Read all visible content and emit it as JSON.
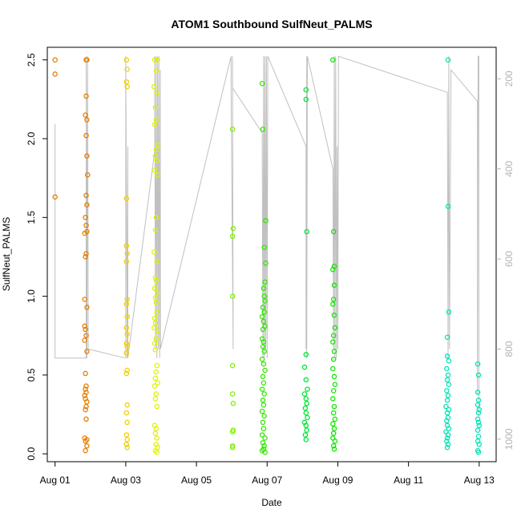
{
  "chart_data": {
    "type": "scatter",
    "title": "ATOM1 Southbound SulfNeut_PALMS",
    "xlabel": "Date",
    "ylabel": "SulfNeut_PALMS",
    "x_ticks": [
      "Aug 01",
      "Aug 03",
      "Aug 05",
      "Aug 07",
      "Aug 09",
      "Aug 11",
      "Aug 13"
    ],
    "x_tick_days": [
      1,
      3,
      5,
      7,
      9,
      11,
      13
    ],
    "xlim_days": [
      0.78,
      13.48
    ],
    "ylim": [
      -0.05,
      2.58
    ],
    "y_ticks": [
      "0.0",
      "0.5",
      "1.0",
      "1.5",
      "2.0",
      "2.5"
    ],
    "y_tick_values": [
      0,
      0.5,
      1,
      1.5,
      2,
      2.5
    ],
    "y2_label": "",
    "y2_ticks": [
      "200",
      "400",
      "600",
      "800",
      "1000"
    ],
    "y2_tick_values": [
      200,
      400,
      600,
      800,
      1000
    ],
    "y2lim": [
      1050,
      130
    ],
    "grid": false,
    "series": [
      {
        "color": "#e67e00",
        "points": [
          [
            1.0,
            2.5
          ],
          [
            1.0,
            2.41
          ],
          [
            1.0,
            1.63
          ],
          [
            1.88,
            2.5
          ],
          [
            1.9,
            2.5
          ],
          [
            1.88,
            2.27
          ],
          [
            1.86,
            2.15
          ],
          [
            1.9,
            2.12
          ],
          [
            1.88,
            2.02
          ],
          [
            1.9,
            1.89
          ],
          [
            1.92,
            1.77
          ],
          [
            1.88,
            1.64
          ],
          [
            1.9,
            1.58
          ],
          [
            1.86,
            1.5
          ],
          [
            1.88,
            1.45
          ],
          [
            1.84,
            1.4
          ],
          [
            1.9,
            1.41
          ],
          [
            1.88,
            1.27
          ],
          [
            1.86,
            1.25
          ],
          [
            1.84,
            0.98
          ],
          [
            1.9,
            0.93
          ],
          [
            1.84,
            0.81
          ],
          [
            1.86,
            0.79
          ],
          [
            1.88,
            0.75
          ],
          [
            1.84,
            0.72
          ],
          [
            1.9,
            0.65
          ],
          [
            1.86,
            0.51
          ],
          [
            1.88,
            0.43
          ],
          [
            1.86,
            0.41
          ],
          [
            1.88,
            0.39
          ],
          [
            1.84,
            0.37
          ],
          [
            1.86,
            0.35
          ],
          [
            1.9,
            0.33
          ],
          [
            1.88,
            0.3
          ],
          [
            1.86,
            0.28
          ],
          [
            1.88,
            0.22
          ],
          [
            1.84,
            0.1
          ],
          [
            1.9,
            0.09
          ],
          [
            1.86,
            0.08
          ],
          [
            1.9,
            0.05
          ],
          [
            1.86,
            0.02
          ]
        ]
      },
      {
        "color": "#f2cf00",
        "points": [
          [
            3.02,
            2.5
          ],
          [
            3.04,
            2.44
          ],
          [
            3.02,
            2.36
          ],
          [
            3.04,
            2.33
          ],
          [
            3.02,
            1.62
          ],
          [
            3.02,
            1.32
          ],
          [
            3.04,
            1.27
          ],
          [
            3.02,
            1.22
          ],
          [
            3.04,
            0.98
          ],
          [
            3.02,
            0.95
          ],
          [
            3.04,
            0.87
          ],
          [
            3.02,
            0.8
          ],
          [
            3.04,
            0.76
          ],
          [
            3.02,
            0.7
          ],
          [
            3.04,
            0.68
          ],
          [
            3.02,
            0.64
          ],
          [
            3.04,
            0.53
          ],
          [
            3.02,
            0.51
          ],
          [
            3.04,
            0.31
          ],
          [
            3.02,
            0.26
          ],
          [
            3.04,
            0.2
          ],
          [
            3.02,
            0.12
          ],
          [
            3.04,
            0.09
          ],
          [
            3.02,
            0.06
          ],
          [
            3.04,
            0.04
          ]
        ]
      },
      {
        "color": "#e0f200",
        "points": [
          [
            3.82,
            2.5
          ],
          [
            3.9,
            2.5
          ],
          [
            3.86,
            2.43
          ],
          [
            3.8,
            2.33
          ],
          [
            3.88,
            2.29
          ],
          [
            3.84,
            2.2
          ],
          [
            3.86,
            2.12
          ],
          [
            3.82,
            2.09
          ],
          [
            3.9,
            1.96
          ],
          [
            3.86,
            1.93
          ],
          [
            3.84,
            1.89
          ],
          [
            3.88,
            1.86
          ],
          [
            3.82,
            1.8
          ],
          [
            3.9,
            1.77
          ],
          [
            3.86,
            1.5
          ],
          [
            3.84,
            1.42
          ],
          [
            3.8,
            1.28
          ],
          [
            3.88,
            1.22
          ],
          [
            3.84,
            1.12
          ],
          [
            3.86,
            1.1
          ],
          [
            3.82,
            1.05
          ],
          [
            3.9,
            1.02
          ],
          [
            3.84,
            0.99
          ],
          [
            3.86,
            0.96
          ],
          [
            3.88,
            0.9
          ],
          [
            3.82,
            0.86
          ],
          [
            3.84,
            0.83
          ],
          [
            3.8,
            0.8
          ],
          [
            3.9,
            0.78
          ],
          [
            3.86,
            0.73
          ],
          [
            3.82,
            0.7
          ],
          [
            3.84,
            0.66
          ],
          [
            3.88,
            0.56
          ],
          [
            3.86,
            0.52
          ],
          [
            3.84,
            0.48
          ],
          [
            3.9,
            0.45
          ],
          [
            3.82,
            0.43
          ],
          [
            3.86,
            0.38
          ],
          [
            3.84,
            0.35
          ],
          [
            3.88,
            0.3
          ],
          [
            3.82,
            0.18
          ],
          [
            3.86,
            0.16
          ],
          [
            3.84,
            0.13
          ],
          [
            3.88,
            0.1
          ],
          [
            3.86,
            0.06
          ],
          [
            3.9,
            0.04
          ],
          [
            3.84,
            0.02
          ],
          [
            3.88,
            0.01
          ]
        ]
      },
      {
        "color": "#7ff200",
        "points": [
          [
            6.02,
            2.06
          ],
          [
            6.04,
            1.43
          ],
          [
            6.02,
            1.38
          ],
          [
            6.02,
            1.0
          ],
          [
            6.02,
            0.56
          ],
          [
            6.02,
            0.38
          ],
          [
            6.04,
            0.32
          ],
          [
            6.02,
            0.14
          ],
          [
            6.04,
            0.15
          ],
          [
            6.02,
            0.04
          ],
          [
            6.02,
            0.05
          ]
        ]
      },
      {
        "color": "#33e600",
        "points": [
          [
            6.86,
            2.35
          ],
          [
            6.88,
            2.06
          ],
          [
            6.96,
            1.48
          ],
          [
            6.92,
            1.31
          ],
          [
            6.96,
            1.21
          ],
          [
            6.94,
            1.09
          ],
          [
            6.9,
            1.05
          ],
          [
            6.92,
            1.0
          ],
          [
            6.94,
            0.97
          ],
          [
            6.88,
            0.93
          ],
          [
            6.92,
            0.9
          ],
          [
            6.86,
            0.87
          ],
          [
            6.9,
            0.84
          ],
          [
            6.88,
            0.79
          ],
          [
            6.94,
            0.81
          ],
          [
            6.86,
            0.73
          ],
          [
            6.9,
            0.71
          ],
          [
            6.88,
            0.68
          ],
          [
            6.92,
            0.65
          ],
          [
            6.86,
            0.6
          ],
          [
            6.9,
            0.57
          ],
          [
            6.94,
            0.53
          ],
          [
            6.88,
            0.49
          ],
          [
            6.9,
            0.45
          ],
          [
            6.86,
            0.41
          ],
          [
            6.92,
            0.38
          ],
          [
            6.88,
            0.34
          ],
          [
            6.9,
            0.31
          ],
          [
            6.86,
            0.27
          ],
          [
            6.92,
            0.24
          ],
          [
            6.88,
            0.2
          ],
          [
            6.9,
            0.16
          ],
          [
            6.86,
            0.12
          ],
          [
            6.94,
            0.1
          ],
          [
            6.88,
            0.07
          ],
          [
            6.92,
            0.05
          ],
          [
            6.9,
            0.03
          ],
          [
            6.86,
            0.02
          ],
          [
            6.94,
            0.01
          ]
        ]
      },
      {
        "color": "#00e633",
        "points": [
          [
            8.1,
            2.31
          ],
          [
            8.1,
            2.25
          ],
          [
            8.12,
            1.41
          ],
          [
            8.1,
            0.63
          ],
          [
            8.06,
            0.55
          ],
          [
            8.1,
            0.47
          ],
          [
            8.14,
            0.41
          ],
          [
            8.06,
            0.38
          ],
          [
            8.1,
            0.35
          ],
          [
            8.12,
            0.32
          ],
          [
            8.08,
            0.29
          ],
          [
            8.1,
            0.26
          ],
          [
            8.14,
            0.23
          ],
          [
            8.06,
            0.2
          ],
          [
            8.1,
            0.18
          ],
          [
            8.12,
            0.15
          ],
          [
            8.08,
            0.12
          ],
          [
            8.1,
            0.09
          ]
        ]
      },
      {
        "color": "#12e600",
        "points": [
          [
            8.86,
            2.5
          ],
          [
            8.88,
            1.41
          ],
          [
            8.9,
            1.19
          ],
          [
            8.86,
            1.17
          ],
          [
            8.9,
            1.07
          ],
          [
            8.88,
            0.98
          ],
          [
            8.86,
            0.95
          ],
          [
            8.9,
            0.88
          ],
          [
            8.92,
            0.8
          ],
          [
            8.88,
            0.75
          ],
          [
            8.86,
            0.71
          ],
          [
            8.9,
            0.65
          ],
          [
            8.88,
            0.6
          ],
          [
            8.86,
            0.54
          ],
          [
            8.9,
            0.49
          ],
          [
            8.92,
            0.44
          ],
          [
            8.88,
            0.4
          ],
          [
            8.86,
            0.35
          ],
          [
            8.9,
            0.3
          ],
          [
            8.88,
            0.26
          ],
          [
            8.92,
            0.22
          ],
          [
            8.86,
            0.19
          ],
          [
            8.9,
            0.16
          ],
          [
            8.88,
            0.13
          ],
          [
            8.86,
            0.1
          ],
          [
            8.92,
            0.08
          ],
          [
            8.88,
            0.05
          ],
          [
            8.9,
            0.03
          ]
        ]
      },
      {
        "color": "#00e6b3",
        "points": [
          [
            12.12,
            2.5
          ],
          [
            12.12,
            1.57
          ],
          [
            12.14,
            0.9
          ],
          [
            12.1,
            0.74
          ],
          [
            12.1,
            0.62
          ],
          [
            12.14,
            0.59
          ],
          [
            12.08,
            0.54
          ],
          [
            12.12,
            0.5
          ],
          [
            12.1,
            0.47
          ],
          [
            12.14,
            0.44
          ],
          [
            12.08,
            0.4
          ],
          [
            12.12,
            0.37
          ],
          [
            12.1,
            0.34
          ],
          [
            12.06,
            0.3
          ],
          [
            12.14,
            0.28
          ],
          [
            12.1,
            0.26
          ],
          [
            12.12,
            0.23
          ],
          [
            12.08,
            0.21
          ],
          [
            12.1,
            0.18
          ],
          [
            12.14,
            0.16
          ],
          [
            12.06,
            0.14
          ],
          [
            12.12,
            0.12
          ],
          [
            12.1,
            0.1
          ],
          [
            12.08,
            0.08
          ],
          [
            12.12,
            0.06
          ],
          [
            12.1,
            0.04
          ],
          [
            12.96,
            0.57
          ],
          [
            12.98,
            0.5
          ],
          [
            12.96,
            0.39
          ],
          [
            12.98,
            0.34
          ],
          [
            12.96,
            0.31
          ],
          [
            13.0,
            0.28
          ],
          [
            12.98,
            0.26
          ],
          [
            12.96,
            0.22
          ],
          [
            12.98,
            0.2
          ],
          [
            13.0,
            0.18
          ],
          [
            12.96,
            0.15
          ],
          [
            12.98,
            0.11
          ],
          [
            12.96,
            0.08
          ],
          [
            13.0,
            0.06
          ],
          [
            12.96,
            0.02
          ],
          [
            12.98,
            0.01
          ]
        ]
      }
    ],
    "altitude_track": {
      "color": "#c0c0c0",
      "points": [
        [
          1.0,
          300
        ],
        [
          1.0,
          820
        ],
        [
          1.88,
          820
        ],
        [
          1.88,
          150
        ],
        [
          1.9,
          820
        ],
        [
          1.92,
          150
        ],
        [
          1.94,
          800
        ],
        [
          3.0,
          820
        ],
        [
          3.0,
          150
        ],
        [
          3.04,
          820
        ],
        [
          3.06,
          350
        ],
        [
          3.06,
          820
        ],
        [
          3.82,
          360
        ],
        [
          3.82,
          150
        ],
        [
          3.84,
          800
        ],
        [
          3.86,
          150
        ],
        [
          3.88,
          820
        ],
        [
          3.9,
          150
        ],
        [
          3.92,
          800
        ],
        [
          3.94,
          150
        ],
        [
          3.96,
          820
        ],
        [
          3.98,
          180
        ],
        [
          3.98,
          800
        ],
        [
          5.98,
          150
        ],
        [
          5.98,
          220
        ],
        [
          6.04,
          800
        ],
        [
          6.02,
          150
        ],
        [
          6.02,
          220
        ],
        [
          6.86,
          320
        ],
        [
          6.88,
          820
        ],
        [
          6.9,
          150
        ],
        [
          6.92,
          820
        ],
        [
          6.94,
          150
        ],
        [
          6.96,
          800
        ],
        [
          6.98,
          150
        ],
        [
          7.0,
          820
        ],
        [
          7.02,
          150
        ],
        [
          8.1,
          350
        ],
        [
          8.1,
          800
        ],
        [
          8.12,
          150
        ],
        [
          8.12,
          820
        ],
        [
          8.14,
          150
        ],
        [
          8.86,
          400
        ],
        [
          8.88,
          800
        ],
        [
          8.9,
          150
        ],
        [
          8.92,
          820
        ],
        [
          8.94,
          150
        ],
        [
          8.96,
          820
        ],
        [
          8.98,
          350
        ],
        [
          9.0,
          800
        ],
        [
          9.02,
          150
        ],
        [
          12.1,
          230
        ],
        [
          12.12,
          820
        ],
        [
          12.14,
          150
        ],
        [
          12.16,
          800
        ],
        [
          12.2,
          180
        ],
        [
          12.95,
          250
        ],
        [
          12.95,
          900
        ],
        [
          12.97,
          150
        ],
        [
          12.99,
          150
        ],
        [
          12.99,
          950
        ]
      ]
    }
  }
}
